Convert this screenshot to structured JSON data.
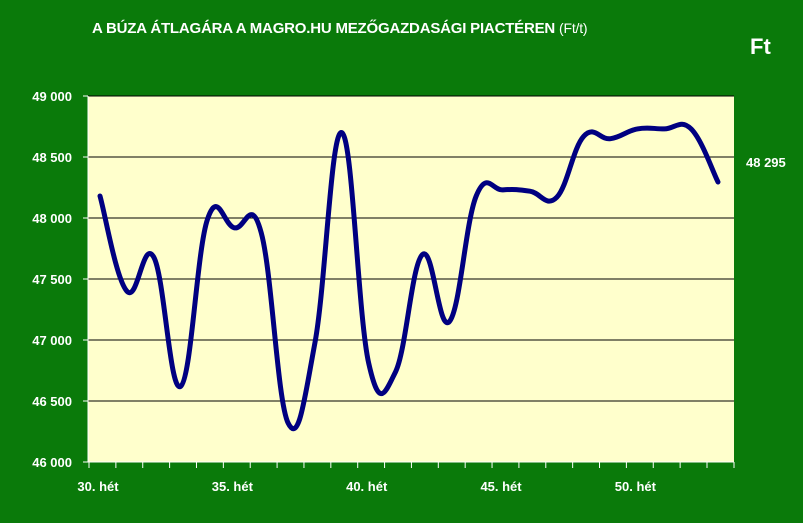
{
  "title": "A BÚZA ÁTLAGÁRA A MAGRO.HU MEZŐGAZDASÁGI PIACTÉREN",
  "title_unit": "(Ft/t)",
  "currency": "Ft",
  "last_value_label": "48 295",
  "colors": {
    "background": "#0a7a0a",
    "plot_area": "#ffffcc",
    "line": "#000080",
    "text": "#ffffff"
  },
  "chart_data": {
    "type": "line",
    "title": "A BÚZA ÁTLAGÁRA A MAGRO.HU MEZŐGAZDASÁGI PIACTÉREN (Ft/t)",
    "xlabel": "",
    "ylabel": "",
    "ylim": [
      46000,
      49000
    ],
    "yticks": [
      46000,
      46500,
      47000,
      47500,
      48000,
      48500,
      49000
    ],
    "ytick_labels": [
      "46 000",
      "46 500",
      "47 000",
      "47 500",
      "48 000",
      "48 500",
      "49 000"
    ],
    "xtick_labels": [
      "30. hét",
      "35. hét",
      "40. hét",
      "45. hét",
      "50. hét"
    ],
    "xtick_weeks": [
      30,
      35,
      40,
      45,
      50
    ],
    "grid": true,
    "legend": "none",
    "x": [
      30,
      31,
      32,
      33,
      34,
      35,
      36,
      37,
      38,
      39,
      40,
      41,
      42,
      43,
      44,
      45,
      46,
      47,
      48,
      49,
      50,
      51,
      52,
      53
    ],
    "values": [
      48180,
      47400,
      47680,
      46620,
      47990,
      47920,
      47880,
      46320,
      46980,
      48700,
      46810,
      46740,
      47700,
      47150,
      48180,
      48230,
      48220,
      48170,
      48670,
      48650,
      48730,
      48730,
      48730,
      48295
    ]
  }
}
